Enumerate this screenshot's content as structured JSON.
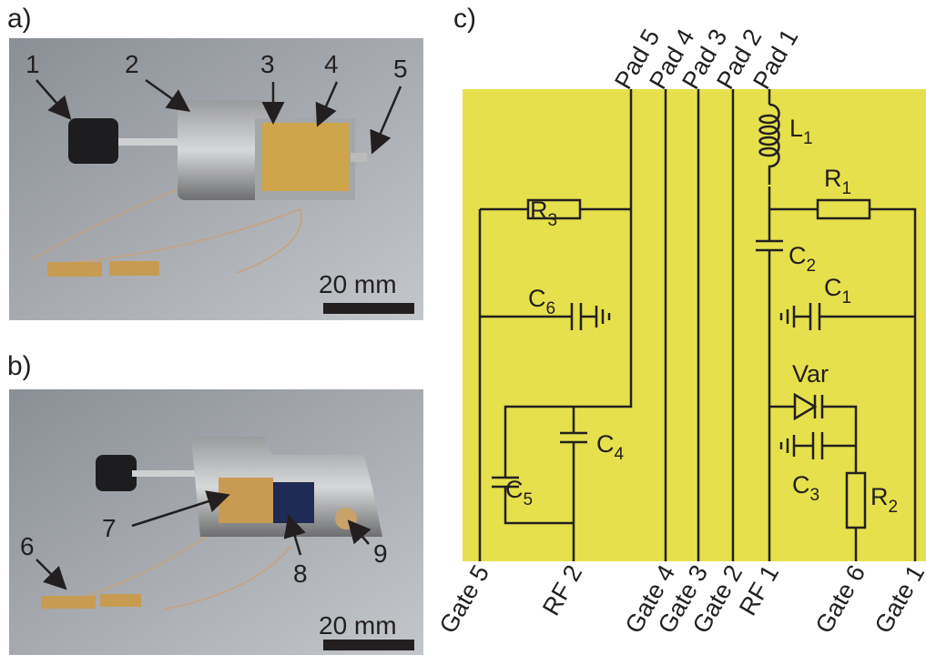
{
  "panels": {
    "a": {
      "label": "a)",
      "callouts": [
        "1",
        "2",
        "3",
        "4",
        "5"
      ],
      "scale_bar": "20 mm"
    },
    "b": {
      "label": "b)",
      "callouts": [
        "6",
        "7",
        "8",
        "9"
      ],
      "scale_bar": "20 mm"
    },
    "c": {
      "label": "c)",
      "pads": [
        "Pad 5",
        "Pad 4",
        "Pad 3",
        "Pad 2",
        "Pad 1"
      ],
      "terminals": [
        "Gate 5",
        "RF 2",
        "Gate 4",
        "Gate 3",
        "Gate 2",
        "RF 1",
        "Gate 6",
        "Gate 1"
      ],
      "components": [
        {
          "symbol": "R",
          "index": "3"
        },
        {
          "symbol": "C",
          "index": "6"
        },
        {
          "symbol": "C",
          "index": "4"
        },
        {
          "symbol": "C",
          "index": "5"
        },
        {
          "symbol": "L",
          "index": "1"
        },
        {
          "symbol": "R",
          "index": "1"
        },
        {
          "symbol": "C",
          "index": "2"
        },
        {
          "symbol": "C",
          "index": "1"
        },
        {
          "symbol": "Var"
        },
        {
          "symbol": "C",
          "index": "3"
        },
        {
          "symbol": "R",
          "index": "2"
        }
      ]
    }
  }
}
